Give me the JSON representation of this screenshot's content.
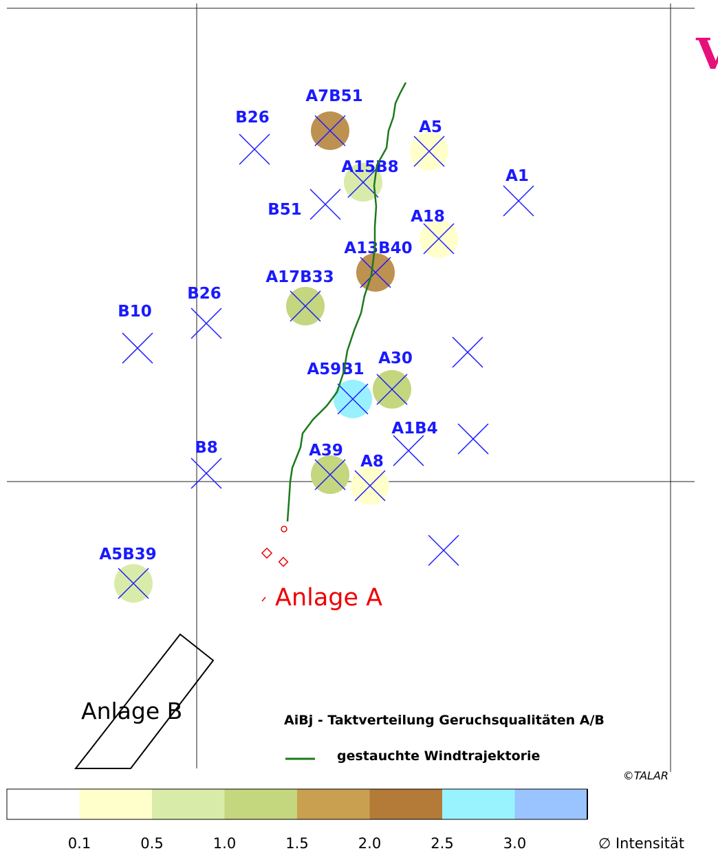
{
  "corner_title": "V",
  "markers": [
    {
      "label": "B26"
    },
    {
      "label": "A7B51",
      "color": "#bd9150"
    },
    {
      "label": "A5",
      "color": "#ffffcc"
    },
    {
      "label": "A15B8",
      "color": "#d9eba8"
    },
    {
      "label": "A1"
    },
    {
      "label": "B51"
    },
    {
      "label": "A18",
      "color": "#ffffcc"
    },
    {
      "label": "A13B40",
      "color": "#bd9150"
    },
    {
      "label": "A17B33",
      "color": "#c4d67e"
    },
    {
      "label": "B26"
    },
    {
      "label": "B10"
    },
    {
      "label": "A30",
      "color": "#c4d67e"
    },
    {
      "label": "A59B1",
      "color": "#99f0ff"
    },
    {
      "label": "A1B4"
    },
    {
      "label": "B8"
    },
    {
      "label": "A39",
      "color": "#c4d67e"
    },
    {
      "label": "A8",
      "color": "#ffffcc"
    },
    {
      "label": "A5B39",
      "color": "#d9eba8"
    }
  ],
  "sources": [
    "Anlage A",
    "Anlage B"
  ],
  "legend": {
    "items": [
      "AiBj - Taktverteilung Geruchsqualitäten A/B",
      "gestauchte Windtrajektorie"
    ],
    "trajectory_color": "#1a7a1a"
  },
  "copyright": "©TALAR",
  "colorbar": {
    "colors": [
      "#ffffff",
      "#ffffcc",
      "#d9eba8",
      "#c4d67e",
      "#c8a050",
      "#b37a38",
      "#99f3ff",
      "#99c4ff"
    ],
    "ticks": [
      "0.1",
      "0.5",
      "1.0",
      "1.5",
      "2.0",
      "2.5",
      "3.0"
    ],
    "label": "∅ Intensität"
  }
}
